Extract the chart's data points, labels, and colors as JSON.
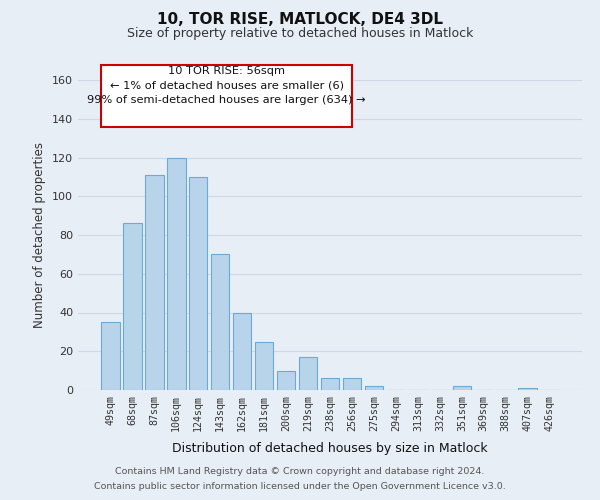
{
  "title": "10, TOR RISE, MATLOCK, DE4 3DL",
  "subtitle": "Size of property relative to detached houses in Matlock",
  "xlabel": "Distribution of detached houses by size in Matlock",
  "ylabel": "Number of detached properties",
  "bar_labels": [
    "49sqm",
    "68sqm",
    "87sqm",
    "106sqm",
    "124sqm",
    "143sqm",
    "162sqm",
    "181sqm",
    "200sqm",
    "219sqm",
    "238sqm",
    "256sqm",
    "275sqm",
    "294sqm",
    "313sqm",
    "332sqm",
    "351sqm",
    "369sqm",
    "388sqm",
    "407sqm",
    "426sqm"
  ],
  "bar_values": [
    35,
    86,
    111,
    120,
    110,
    70,
    40,
    25,
    10,
    17,
    6,
    6,
    2,
    0,
    0,
    0,
    2,
    0,
    0,
    1,
    0
  ],
  "bar_color": "#b8d4ea",
  "bar_edge_color": "#6aaad4",
  "annotation_line1": "10 TOR RISE: 56sqm",
  "annotation_line2": "← 1% of detached houses are smaller (6)",
  "annotation_line3": "99% of semi-detached houses are larger (634) →",
  "annotation_box_color": "#ffffff",
  "annotation_box_edge_color": "#cc0000",
  "ylim": [
    0,
    160
  ],
  "yticks": [
    0,
    20,
    40,
    60,
    80,
    100,
    120,
    140,
    160
  ],
  "grid_color": "#d0d8e8",
  "background_color": "#e8eef5",
  "footer_line1": "Contains HM Land Registry data © Crown copyright and database right 2024.",
  "footer_line2": "Contains public sector information licensed under the Open Government Licence v3.0."
}
